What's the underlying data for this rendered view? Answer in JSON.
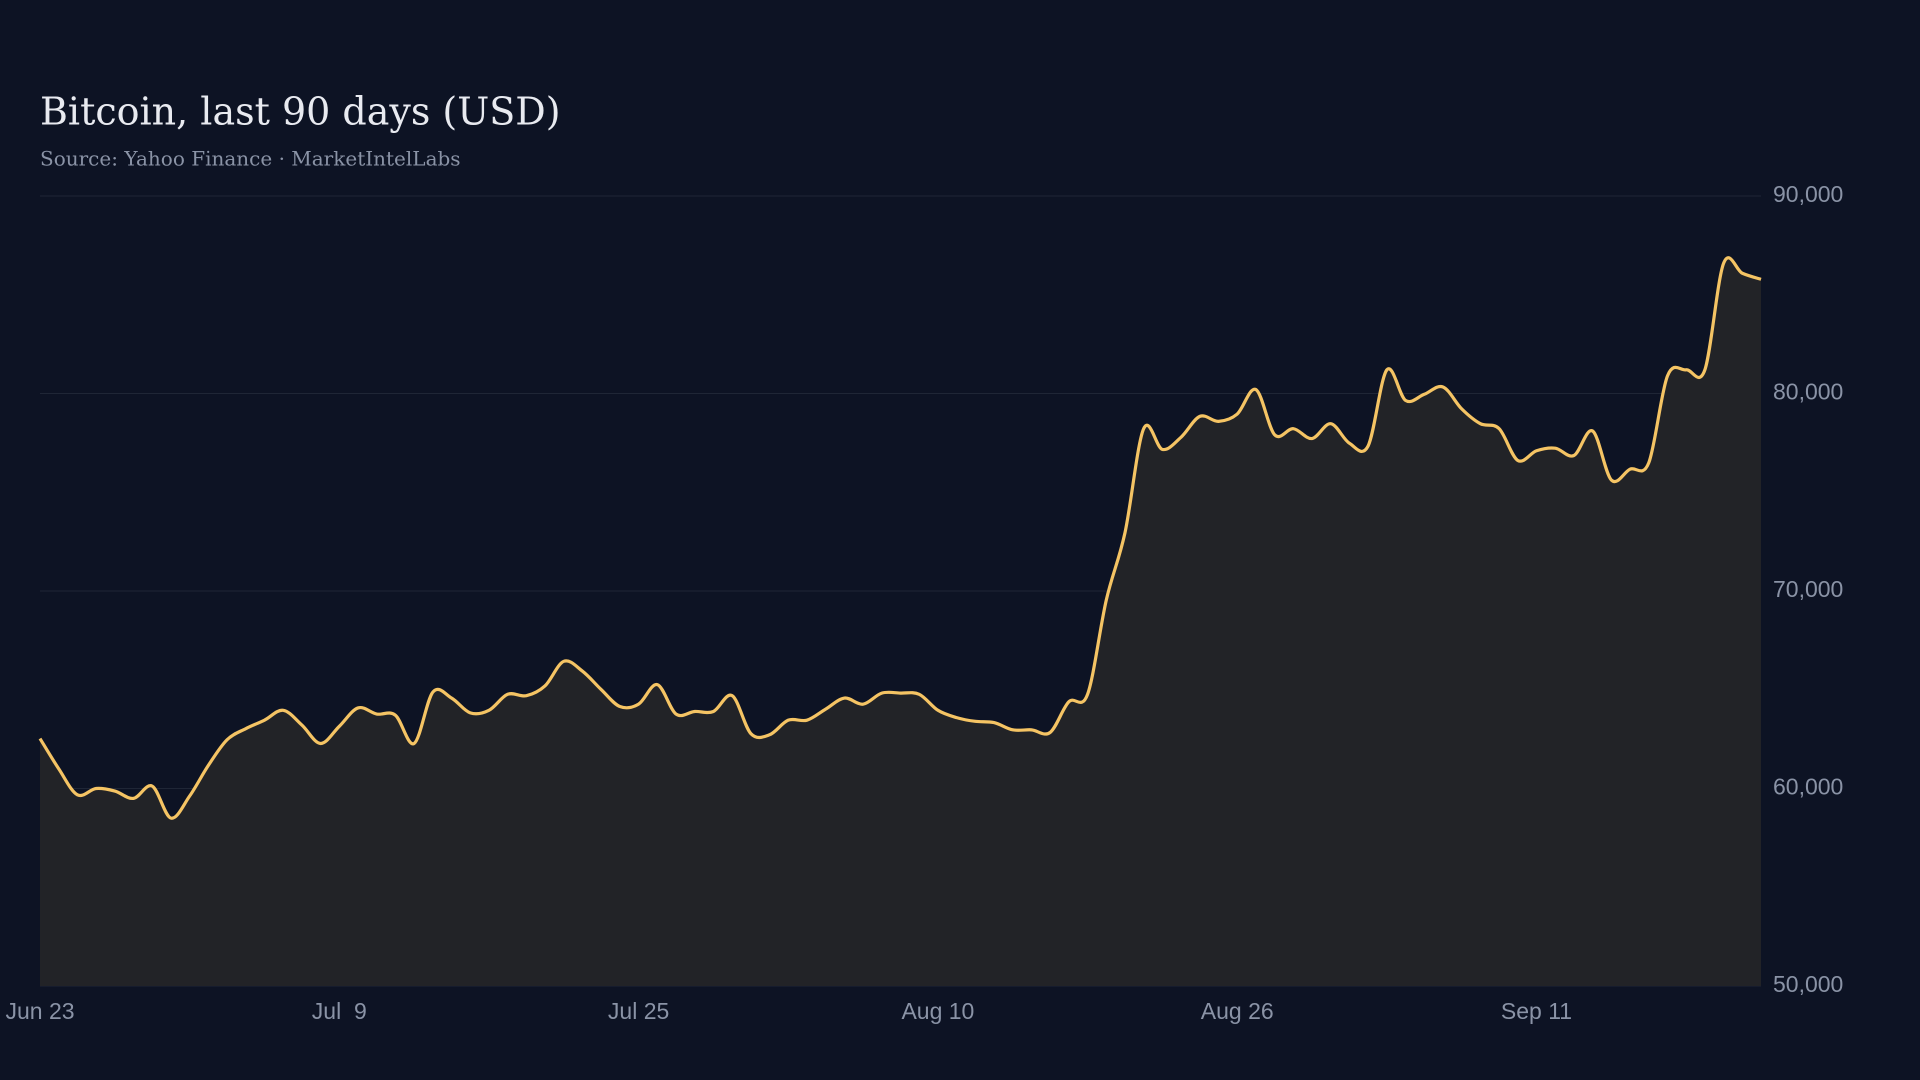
{
  "chart_data": {
    "type": "line",
    "title": "Bitcoin, last 90 days (USD)",
    "subtitle": "Source: Yahoo Finance · MarketIntelLabs",
    "categories": [
      "Jun 23",
      null,
      null,
      null,
      null,
      null,
      null,
      null,
      null,
      null,
      null,
      null,
      null,
      null,
      null,
      null,
      "Jul  9",
      null,
      null,
      null,
      null,
      null,
      null,
      null,
      null,
      null,
      null,
      null,
      null,
      null,
      null,
      null,
      "Jul 25",
      null,
      null,
      null,
      null,
      null,
      null,
      null,
      null,
      null,
      null,
      null,
      null,
      null,
      null,
      null,
      "Aug 10",
      null,
      null,
      null,
      null,
      null,
      null,
      null,
      null,
      null,
      null,
      null,
      null,
      null,
      null,
      null,
      "Aug 26",
      null,
      null,
      null,
      null,
      null,
      null,
      null,
      null,
      null,
      null,
      null,
      null,
      null,
      null,
      null,
      "Sep 11",
      null,
      null,
      null,
      null,
      null,
      null,
      null,
      null,
      null,
      null,
      null,
      null
    ],
    "series": [
      {
        "name": "Bitcoin",
        "color": "#f5c464",
        "values": [
          62530,
          61000,
          59680,
          60000,
          59870,
          59500,
          60120,
          58500,
          59620,
          61170,
          62470,
          63030,
          63460,
          63960,
          63210,
          62280,
          63150,
          64080,
          63770,
          63710,
          62280,
          64880,
          64580,
          63830,
          63960,
          64770,
          64700,
          65200,
          66440,
          65940,
          65010,
          64150,
          64270,
          65260,
          63770,
          63900,
          63900,
          64700,
          62780,
          62720,
          63460,
          63460,
          64020,
          64580,
          64270,
          64830,
          64830,
          64770,
          63960,
          63590,
          63400,
          63340,
          62970,
          62970,
          62840,
          64390,
          64770,
          69540,
          72950,
          78220,
          77170,
          77790,
          78840,
          78590,
          78960,
          80200,
          77910,
          78220,
          77720,
          78470,
          77480,
          77350,
          81200,
          79650,
          79960,
          80330,
          79220,
          78470,
          78220,
          76610,
          77100,
          77230,
          76860,
          78100,
          75620,
          76170,
          76490,
          80890,
          81200,
          81200,
          86590,
          86090,
          85780
        ]
      }
    ],
    "ylim": [
      50000,
      90000
    ],
    "yticks": [
      {
        "value": 50000,
        "label": "50,000"
      },
      {
        "value": 60000,
        "label": "60,000"
      },
      {
        "value": 70000,
        "label": "70,000"
      },
      {
        "value": 80000,
        "label": "80,000"
      },
      {
        "value": 90000,
        "label": "90,000"
      }
    ],
    "grid": true
  }
}
